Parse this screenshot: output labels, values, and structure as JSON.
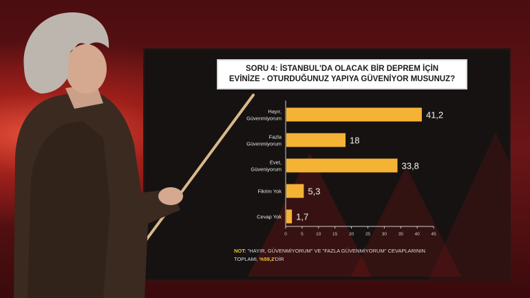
{
  "chart_data": {
    "type": "bar",
    "orientation": "horizontal",
    "title_lines": [
      "SORU 4: İSTANBUL'DA OLACAK BİR DEPREM İÇİN",
      "EVİNİZE - OTURDUĞUNUZ YAPIYA GÜVENİYOR MUSUNUZ?"
    ],
    "categories": [
      [
        "Hayır,",
        "Güvenmiyorum"
      ],
      [
        "Fazla",
        "Güvenmiyorum"
      ],
      [
        "Evet,",
        "Güveniyorum"
      ],
      [
        "Fikrim Yok"
      ],
      [
        "Cevap Yok"
      ]
    ],
    "values": [
      41.2,
      18,
      33.8,
      5.3,
      1.7
    ],
    "value_labels": [
      "41,2",
      "18",
      "33,8",
      "5,3",
      "1,7"
    ],
    "xlim": [
      0,
      45
    ],
    "xticks": [
      0,
      5,
      10,
      15,
      20,
      25,
      30,
      35,
      40,
      45
    ],
    "grid": false,
    "bar_color": "#f5b335"
  },
  "note": {
    "prefix": "NOT:",
    "text_line1": " \"HAYIR, GÜVENMİYORUM\" VE \"FAZLA GÜVENMİYORUM\" CEVAPLARININ",
    "text_line2": "TOPLAMI, ",
    "highlight": "%59,2",
    "suffix": "'DİR"
  },
  "colors": {
    "screen_bg": "#161212",
    "text_light": "#e6e6e6",
    "highlight": "#f2c230"
  }
}
